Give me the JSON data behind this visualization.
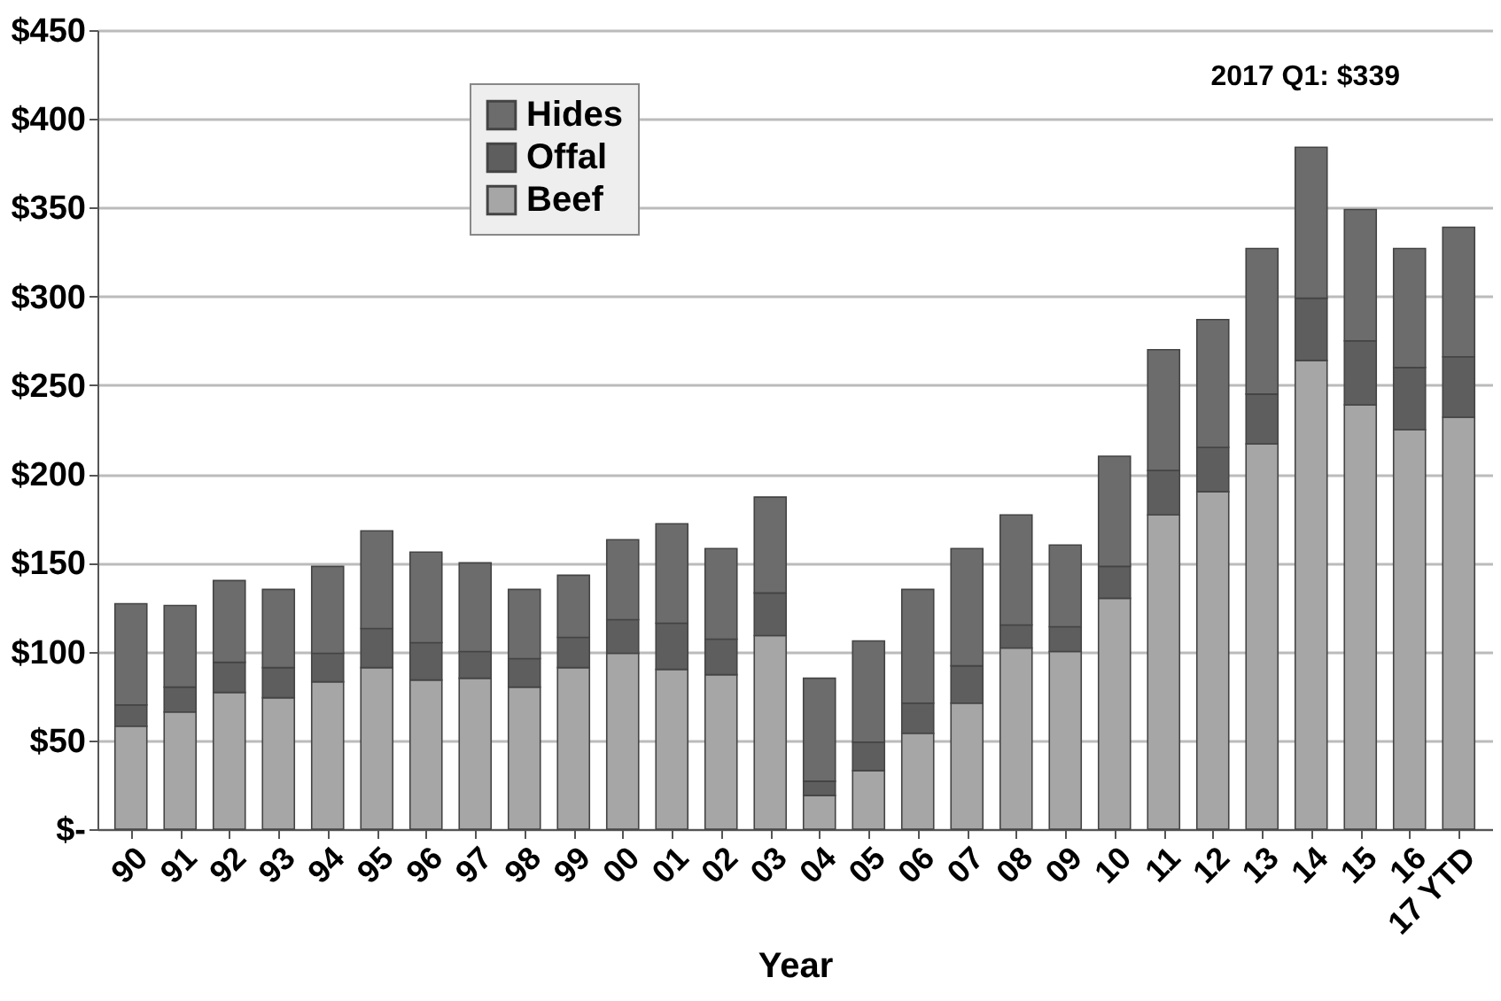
{
  "chart_data": {
    "type": "bar",
    "stacked": true,
    "xlabel": "Year",
    "categories": [
      "90",
      "91",
      "92",
      "93",
      "94",
      "95",
      "96",
      "97",
      "98",
      "99",
      "00",
      "01",
      "02",
      "03",
      "04",
      "05",
      "06",
      "07",
      "08",
      "09",
      "10",
      "11",
      "12",
      "13",
      "14",
      "15",
      "16",
      "17 YTD"
    ],
    "series": [
      {
        "name": "Beef",
        "color": "#a6a6a6",
        "values": [
          58,
          66,
          77,
          74,
          83,
          91,
          84,
          85,
          80,
          91,
          99,
          90,
          87,
          109,
          19,
          33,
          54,
          71,
          102,
          100,
          130,
          177,
          190,
          217,
          264,
          239,
          225,
          232
        ]
      },
      {
        "name": "Offal",
        "color": "#5e5e5e",
        "values": [
          12,
          14,
          17,
          17,
          16,
          22,
          21,
          15,
          16,
          17,
          19,
          26,
          20,
          24,
          8,
          16,
          17,
          21,
          13,
          14,
          18,
          25,
          25,
          28,
          35,
          36,
          35,
          34
        ]
      },
      {
        "name": "Hides",
        "color": "#6c6c6c",
        "values": [
          57,
          46,
          46,
          44,
          49,
          55,
          51,
          50,
          39,
          35,
          45,
          56,
          51,
          54,
          58,
          57,
          64,
          66,
          62,
          46,
          62,
          68,
          72,
          82,
          85,
          74,
          67,
          73
        ]
      }
    ],
    "ylim": [
      0,
      450
    ],
    "yticks": [
      {
        "value": 0,
        "label": "$-"
      },
      {
        "value": 50,
        "label": "$50"
      },
      {
        "value": 100,
        "label": "$100"
      },
      {
        "value": 150,
        "label": "$150"
      },
      {
        "value": 200,
        "label": "$200"
      },
      {
        "value": 250,
        "label": "$250"
      },
      {
        "value": 300,
        "label": "$300"
      },
      {
        "value": 350,
        "label": "$350"
      },
      {
        "value": 400,
        "label": "$400"
      },
      {
        "value": 450,
        "label": "$450"
      }
    ],
    "grid": "y",
    "legend": "top left",
    "annotations": [
      "2017 Q1: $339"
    ]
  }
}
